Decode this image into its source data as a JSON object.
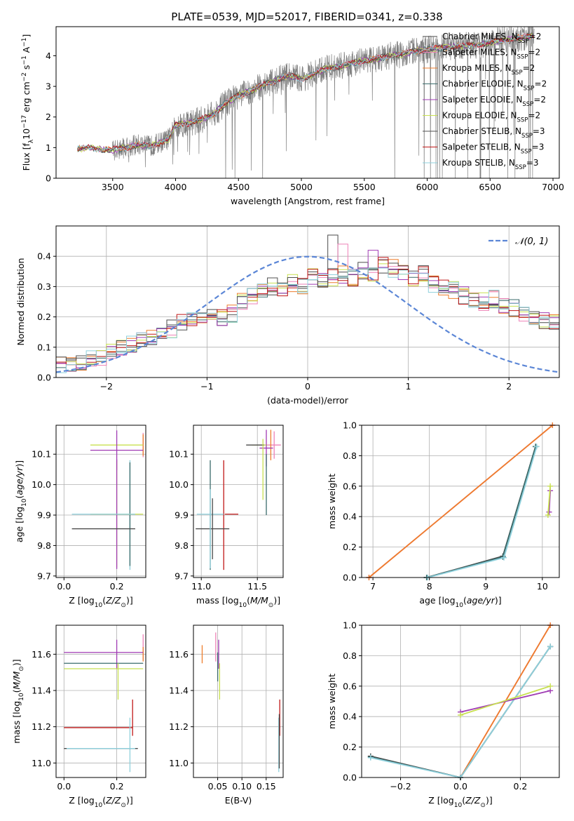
{
  "figure": {
    "title": "PLATE=0539, MJD=52017, FIBERID=0341, z=0.338"
  },
  "colors": {
    "chabrier_miles": "#4a4a4a",
    "salpeter_miles": "#ee82b8",
    "kroupa_miles": "#ee7d2c",
    "chabrier_elodie": "#3a6b6b",
    "salpeter_elodie": "#a03cb4",
    "kroupa_elodie": "#c8e050",
    "chabrier_stelib": "#505050",
    "salpeter_stelib": "#c01818",
    "kroupa_stelib": "#8fd0dc",
    "data_gray": "#808080",
    "normal_curve": "#5b86d6"
  },
  "chart_data": [
    {
      "id": "spectrum",
      "type": "line",
      "title": "PLATE=0539, MJD=52017, FIBERID=0341, z=0.338",
      "xlabel": "wavelength [Angstrom, rest frame]",
      "ylabel": "Flux [f_λ 10^-17 erg cm^-2 s^-1 A^-1]",
      "xlim": [
        3050,
        7050
      ],
      "ylim": [
        0,
        4.95
      ],
      "xticks": [
        3500,
        4000,
        4500,
        5000,
        5500,
        6000,
        6500,
        7000
      ],
      "yticks": [
        0,
        1,
        2,
        3,
        4
      ],
      "grid": false,
      "legend_position": "top-right",
      "data_range": [
        3220,
        6850
      ],
      "continuum": {
        "x": [
          3220,
          3300,
          3400,
          3500,
          3600,
          3700,
          3800,
          3900,
          3950,
          4000,
          4100,
          4200,
          4300,
          4400,
          4500,
          4600,
          4700,
          4800,
          4900,
          5000,
          5100,
          5200,
          5300,
          5400,
          5500,
          5600,
          5700,
          5800,
          5900,
          6000,
          6200,
          6400,
          6600,
          6850
        ],
        "y": [
          0.95,
          1.0,
          0.95,
          0.92,
          1.0,
          1.1,
          1.05,
          1.2,
          1.3,
          1.75,
          1.8,
          1.9,
          2.1,
          2.45,
          2.7,
          2.85,
          3.05,
          3.2,
          3.35,
          3.25,
          3.4,
          3.6,
          3.65,
          3.75,
          3.85,
          3.9,
          4.0,
          4.05,
          4.15,
          4.2,
          4.3,
          4.35,
          4.5,
          4.65
        ]
      },
      "series": [
        {
          "name": "Chabrier MILES, N_SSP=2",
          "color": "#4a4a4a"
        },
        {
          "name": "Salpeter MILES, N_SSP=2",
          "color": "#ee82b8"
        },
        {
          "name": "Kroupa MILES, N_SSP=2",
          "color": "#ee7d2c"
        },
        {
          "name": "Chabrier ELODIE, N_SSP=2",
          "color": "#3a6b6b"
        },
        {
          "name": "Salpeter ELODIE, N_SSP=2",
          "color": "#a03cb4"
        },
        {
          "name": "Kroupa ELODIE, N_SSP=2",
          "color": "#c8e050"
        },
        {
          "name": "Chabrier STELIB, N_SSP=3",
          "color": "#505050"
        },
        {
          "name": "Salpeter STELIB, N_SSP=3",
          "color": "#c01818"
        },
        {
          "name": "Kroupa STELIB, N_SSP=3",
          "color": "#8fd0dc"
        }
      ]
    },
    {
      "id": "residuals",
      "type": "line",
      "xlabel": "(data-model)/error",
      "ylabel": "Normed distribution",
      "xlim": [
        -2.5,
        2.5
      ],
      "ylim": [
        0,
        0.5
      ],
      "xticks": [
        -2,
        -1,
        0,
        1,
        2
      ],
      "yticks": [
        0.0,
        0.1,
        0.2,
        0.3,
        0.4
      ],
      "grid": true,
      "legend_position": "top-right",
      "normal_label": "𝒩(0, 1)",
      "bin_edges_start": -2.5,
      "bin_width": 0.1,
      "base_hist": [
        0.04,
        0.05,
        0.05,
        0.06,
        0.07,
        0.08,
        0.1,
        0.11,
        0.12,
        0.13,
        0.15,
        0.16,
        0.18,
        0.19,
        0.2,
        0.22,
        0.2,
        0.21,
        0.25,
        0.27,
        0.28,
        0.3,
        0.29,
        0.31,
        0.3,
        0.33,
        0.32,
        0.33,
        0.34,
        0.33,
        0.35,
        0.34,
        0.37,
        0.36,
        0.35,
        0.33,
        0.34,
        0.31,
        0.3,
        0.29,
        0.27,
        0.26,
        0.25,
        0.26,
        0.24,
        0.23,
        0.21,
        0.2,
        0.19,
        0.18,
        0.17,
        0.16,
        0.15,
        0.15,
        0.14,
        0.13,
        0.12,
        0.11,
        0.1,
        0.09,
        0.09,
        0.08,
        0.07,
        0.07,
        0.06,
        0.06,
        0.05,
        0.05,
        0.05,
        0.05
      ],
      "highlights": [
        {
          "bin": 27,
          "value": 0.47
        },
        {
          "bin": 28,
          "value": 0.44
        },
        {
          "bin": 31,
          "value": 0.42
        },
        {
          "bin": 35,
          "value": 0.345
        }
      ]
    },
    {
      "id": "age_vs_Z",
      "type": "scatter",
      "xlabel": "Z [log10(Z/Z_sun)]",
      "ylabel": "age [log10(age/yr)]",
      "xlim": [
        -0.03,
        0.31
      ],
      "ylim": [
        9.695,
        10.195
      ],
      "xticks": [
        0.0,
        0.2
      ],
      "yticks": [
        9.7,
        9.8,
        9.9,
        10.0,
        10.1
      ],
      "grid": true,
      "points": [
        {
          "x": 0.3,
          "y": 10.13,
          "xerr": 0.0,
          "yerr": 0.04,
          "color": "#ee82b8"
        },
        {
          "x": 0.3,
          "y": 10.13,
          "xerr": 0.0,
          "yerr": 0.035,
          "color": "#ee7d2c"
        },
        {
          "x": 0.2,
          "y": 10.13,
          "xerr": 0.1,
          "yerr": 0.0,
          "color": "#c8e050"
        },
        {
          "x": 0.2,
          "y": 10.113,
          "xerr": 0.1,
          "yerr": 0.065,
          "color": "#a03cb4"
        },
        {
          "x": 0.25,
          "y": 9.9,
          "xerr": 0.0,
          "yerr": 0.18,
          "color": "#8fd0dc"
        },
        {
          "x": 0.25,
          "y": 9.903,
          "xerr": 0.0,
          "yerr": 0.17,
          "color": "#3a6b6b"
        },
        {
          "x": 0.2,
          "y": 9.903,
          "xerr": 0.1,
          "yerr": 0.175,
          "color": "#c8e050"
        },
        {
          "x": 0.2,
          "y": 9.903,
          "xerr": 0.0,
          "yerr": 0.18,
          "color": "#a03cb4"
        },
        {
          "x": 0.15,
          "y": 9.903,
          "xerr": 0.12,
          "yerr": 0.0,
          "color": "#8fd0dc"
        },
        {
          "x": 0.15,
          "y": 9.855,
          "xerr": 0.12,
          "yerr": 0.0,
          "color": "#4a4a4a"
        }
      ]
    },
    {
      "id": "age_vs_mass",
      "type": "scatter",
      "xlabel": "mass [log10(M/M_sun)]",
      "ylabel": "",
      "xlim": [
        10.93,
        11.73
      ],
      "ylim": [
        9.695,
        10.195
      ],
      "xticks": [
        11.0,
        11.5
      ],
      "yticks": [
        9.7,
        9.8,
        9.9,
        10.0,
        10.1
      ],
      "grid": true,
      "points": [
        {
          "x": 11.65,
          "y": 10.13,
          "xerr": 0.06,
          "yerr": 0.045,
          "color": "#ee82b8"
        },
        {
          "x": 11.62,
          "y": 10.13,
          "xerr": 0.0,
          "yerr": 0.05,
          "color": "#ee7d2c"
        },
        {
          "x": 11.52,
          "y": 10.13,
          "xerr": 0.07,
          "yerr": 0.0,
          "color": "#c8e050"
        },
        {
          "x": 11.48,
          "y": 10.13,
          "xerr": 0.08,
          "yerr": 0.0,
          "color": "#4a4a4a"
        },
        {
          "x": 11.58,
          "y": 10.12,
          "xerr": 0.06,
          "yerr": 0.06,
          "color": "#a03cb4"
        },
        {
          "x": 11.55,
          "y": 10.05,
          "xerr": 0.0,
          "yerr": 0.1,
          "color": "#c8e050"
        },
        {
          "x": 11.58,
          "y": 10.0,
          "xerr": 0.0,
          "yerr": 0.1,
          "color": "#3a6b6b"
        },
        {
          "x": 11.2,
          "y": 9.9,
          "xerr": 0.0,
          "yerr": 0.18,
          "color": "#c01818"
        },
        {
          "x": 11.27,
          "y": 9.903,
          "xerr": 0.06,
          "yerr": 0.0,
          "color": "#c01818"
        },
        {
          "x": 11.08,
          "y": 9.9,
          "xerr": 0.0,
          "yerr": 0.18,
          "color": "#3a6b6b"
        },
        {
          "x": 11.08,
          "y": 9.903,
          "xerr": 0.12,
          "yerr": 0.0,
          "color": "#8fd0dc"
        },
        {
          "x": 11.1,
          "y": 9.855,
          "xerr": 0.15,
          "yerr": 0.1,
          "color": "#4a4a4a"
        },
        {
          "x": 11.08,
          "y": 9.855,
          "xerr": 0.0,
          "yerr": 0.13,
          "color": "#8fd0dc"
        }
      ]
    },
    {
      "id": "mass_weight_vs_age",
      "type": "line",
      "xlabel": "age [log10(age/yr)]",
      "ylabel": "mass weight",
      "xlim": [
        6.8,
        10.3
      ],
      "ylim": [
        0,
        1.0
      ],
      "xticks": [
        7,
        8,
        9,
        10
      ],
      "yticks": [
        0.0,
        0.2,
        0.4,
        0.6,
        0.8,
        1.0
      ],
      "grid": true,
      "series": [
        {
          "color": "#ee82b8",
          "x": [
            6.93,
            10.18
          ],
          "y": [
            0.0,
            1.0
          ]
        },
        {
          "color": "#ee7d2c",
          "x": [
            6.93,
            10.18
          ],
          "y": [
            0.0,
            1.0
          ]
        },
        {
          "color": "#4a4a4a",
          "x": [
            7.95,
            9.3,
            9.88
          ],
          "y": [
            0.0,
            0.14,
            0.86
          ]
        },
        {
          "color": "#3a6b6b",
          "x": [
            7.95,
            9.3,
            9.88
          ],
          "y": [
            0.0,
            0.135,
            0.86
          ]
        },
        {
          "color": "#8fd0dc",
          "x": [
            7.97,
            9.32,
            9.9
          ],
          "y": [
            0.0,
            0.13,
            0.86
          ]
        },
        {
          "color": "#a03cb4",
          "x": [
            10.12,
            10.14
          ],
          "y": [
            0.43,
            0.57
          ]
        },
        {
          "color": "#c8e050",
          "x": [
            10.1,
            10.14
          ],
          "y": [
            0.41,
            0.6
          ]
        }
      ]
    },
    {
      "id": "mass_vs_Z",
      "type": "scatter",
      "xlabel": "Z [log10(Z/Z_sun)]",
      "ylabel": "mass [log10(M/M_sun)]",
      "xlim": [
        -0.03,
        0.31
      ],
      "ylim": [
        10.92,
        11.76
      ],
      "xticks": [
        0.0,
        0.2
      ],
      "yticks": [
        11.0,
        11.2,
        11.4,
        11.6
      ],
      "grid": true,
      "points": [
        {
          "x": 0.3,
          "y": 11.64,
          "xerr": 0.0,
          "yerr": 0.07,
          "color": "#ee82b8"
        },
        {
          "x": 0.3,
          "y": 11.6,
          "xerr": 0.0,
          "yerr": 0.04,
          "color": "#ee7d2c"
        },
        {
          "x": 0.15,
          "y": 11.61,
          "xerr": 0.15,
          "yerr": 0.0,
          "color": "#a03cb4"
        },
        {
          "x": 0.2,
          "y": 11.6,
          "xerr": 0.0,
          "yerr": 0.08,
          "color": "#a03cb4"
        },
        {
          "x": 0.15,
          "y": 11.55,
          "xerr": 0.15,
          "yerr": 0.0,
          "color": "#3a6b6b"
        },
        {
          "x": 0.15,
          "y": 11.52,
          "xerr": 0.15,
          "yerr": 0.0,
          "color": "#c8e050"
        },
        {
          "x": 0.205,
          "y": 11.45,
          "xerr": 0.0,
          "yerr": 0.1,
          "color": "#c8e050"
        },
        {
          "x": 0.13,
          "y": 11.195,
          "xerr": 0.13,
          "yerr": 0.0,
          "color": "#c01818"
        },
        {
          "x": 0.26,
          "y": 11.25,
          "xerr": 0.0,
          "yerr": 0.1,
          "color": "#c01818"
        },
        {
          "x": 0.25,
          "y": 11.1,
          "xerr": 0.0,
          "yerr": 0.15,
          "color": "#8fd0dc"
        },
        {
          "x": 0.14,
          "y": 11.08,
          "xerr": 0.14,
          "yerr": 0.0,
          "color": "#4a4a4a"
        },
        {
          "x": 0.14,
          "y": 11.08,
          "xerr": 0.13,
          "yerr": 0.0,
          "color": "#8fd0dc"
        }
      ]
    },
    {
      "id": "mass_vs_ebv",
      "type": "scatter",
      "xlabel": "E(B-V)",
      "ylabel": "",
      "xlim": [
        0.0,
        0.185
      ],
      "ylim": [
        10.92,
        11.76
      ],
      "xticks": [
        0.05,
        0.1,
        0.15
      ],
      "xtick_labels": [
        "0.05",
        "0.10",
        "0.15"
      ],
      "yticks": [
        11.0,
        11.2,
        11.4,
        11.6
      ],
      "grid": true,
      "points": [
        {
          "x": 0.018,
          "y": 11.6,
          "xerr": 0.0,
          "yerr": 0.05,
          "color": "#ee7d2c"
        },
        {
          "x": 0.046,
          "y": 11.64,
          "xerr": 0.0,
          "yerr": 0.08,
          "color": "#ee82b8"
        },
        {
          "x": 0.052,
          "y": 11.6,
          "xerr": 0.0,
          "yerr": 0.08,
          "color": "#a03cb4"
        },
        {
          "x": 0.05,
          "y": 11.53,
          "xerr": 0.0,
          "yerr": 0.08,
          "color": "#3a6b6b"
        },
        {
          "x": 0.054,
          "y": 11.45,
          "xerr": 0.0,
          "yerr": 0.1,
          "color": "#c8e050"
        },
        {
          "x": 0.178,
          "y": 11.25,
          "xerr": 0.0,
          "yerr": 0.1,
          "color": "#c01818"
        },
        {
          "x": 0.176,
          "y": 11.1,
          "xerr": 0.0,
          "yerr": 0.15,
          "color": "#8fd0dc"
        },
        {
          "x": 0.177,
          "y": 11.12,
          "xerr": 0.0,
          "yerr": 0.15,
          "color": "#4a4a4a"
        }
      ]
    },
    {
      "id": "mass_weight_vs_Z",
      "type": "line",
      "xlabel": "Z [log10(Z/Z_sun)]",
      "ylabel": "mass weight",
      "xlim": [
        -0.33,
        0.33
      ],
      "ylim": [
        0,
        1.0
      ],
      "xticks": [
        -0.2,
        0.0,
        0.2
      ],
      "yticks": [
        0.0,
        0.2,
        0.4,
        0.6,
        0.8,
        1.0
      ],
      "grid": true,
      "series": [
        {
          "color": "#ee82b8",
          "x": [
            0.0,
            0.3
          ],
          "y": [
            0.0,
            1.0
          ]
        },
        {
          "color": "#ee7d2c",
          "x": [
            0.0,
            0.3
          ],
          "y": [
            0.0,
            1.0
          ]
        },
        {
          "color": "#4a4a4a",
          "x": [
            -0.3,
            0.0,
            0.3
          ],
          "y": [
            0.14,
            0.0,
            0.86
          ]
        },
        {
          "color": "#3a6b6b",
          "x": [
            -0.3,
            0.0,
            0.3
          ],
          "y": [
            0.135,
            0.0,
            0.86
          ]
        },
        {
          "color": "#8fd0dc",
          "x": [
            -0.3,
            0.0,
            0.3
          ],
          "y": [
            0.13,
            0.0,
            0.86
          ]
        },
        {
          "color": "#a03cb4",
          "x": [
            0.0,
            0.3
          ],
          "y": [
            0.43,
            0.57
          ]
        },
        {
          "color": "#c8e050",
          "x": [
            0.0,
            0.3
          ],
          "y": [
            0.41,
            0.6
          ]
        }
      ]
    }
  ]
}
